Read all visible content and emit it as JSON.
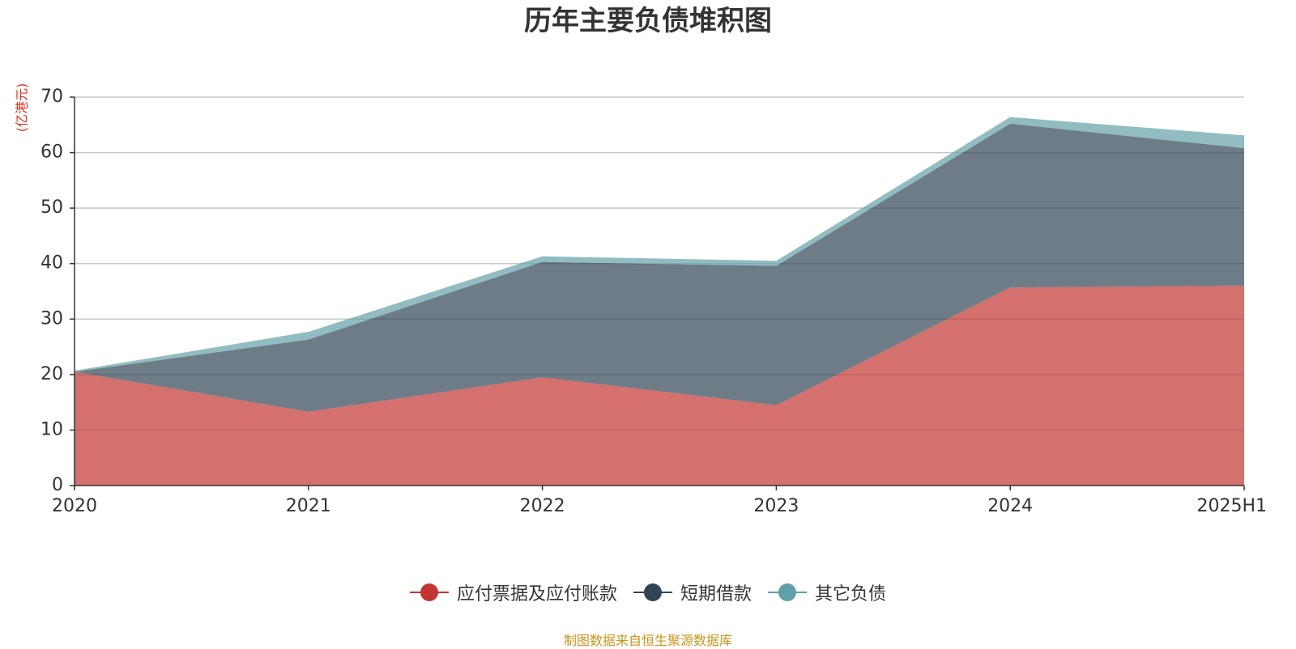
{
  "chart_data": {
    "type": "area",
    "stacked": true,
    "title": "历年主要负债堆积图",
    "unit_label": "(亿港元)",
    "categories": [
      "2020",
      "2021",
      "2022",
      "2023",
      "2024",
      "2025H1"
    ],
    "ylim": [
      0,
      70
    ],
    "yticks": [
      0,
      10,
      20,
      30,
      40,
      50,
      60,
      70
    ],
    "grid": true,
    "legend_position": "bottom",
    "series": [
      {
        "name": "应付票据及应付账款",
        "values": [
          20.5,
          13.3,
          19.5,
          14.5,
          35.7,
          36.0
        ],
        "color": "#c23531"
      },
      {
        "name": "短期借款",
        "values": [
          0,
          13.0,
          20.8,
          25.1,
          29.5,
          24.8
        ],
        "color": "#2f4554"
      },
      {
        "name": "其它负债",
        "values": [
          0.2,
          1.4,
          1.0,
          0.9,
          1.2,
          2.3
        ],
        "color": "#61a0a8"
      }
    ]
  },
  "source_note": "制图数据来自恒生聚源数据库"
}
